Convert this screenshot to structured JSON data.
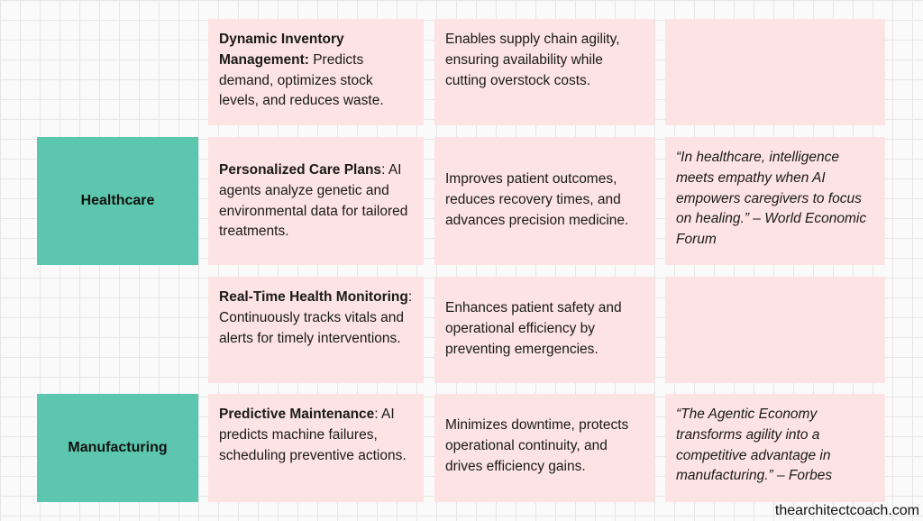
{
  "sectors": {
    "healthcare": "Healthcare",
    "manufacturing": "Manufacturing"
  },
  "rows": [
    {
      "use_case_title": "Dynamic Inventory Management:",
      "use_case_text": " Predicts demand, optimizes stock levels, and reduces waste.",
      "impact": "Enables supply chain agility, ensuring availability while cutting overstock costs.",
      "quote": ""
    },
    {
      "use_case_title": "Personalized Care Plans",
      "use_case_text": ": AI agents analyze genetic and environmental data for tailored treatments.",
      "impact": "Improves patient outcomes, reduces recovery times, and advances precision medicine.",
      "quote": "“In healthcare, intelligence meets empathy when AI empowers caregivers to focus on healing.” – World Economic Forum"
    },
    {
      "use_case_title": "Real-Time Health Monitoring",
      "use_case_text": ": Continuously tracks vitals and alerts for timely interventions.",
      "impact": "Enhances patient safety and operational efficiency by preventing emergencies.",
      "quote": ""
    },
    {
      "use_case_title": "Predictive Maintenance",
      "use_case_text": ": AI predicts machine failures, scheduling preventive actions.",
      "impact": "Minimizes downtime, protects operational continuity, and drives efficiency gains.",
      "quote": "“The Agentic Economy transforms agility into a competitive advantage in manufacturing.” – Forbes"
    }
  ],
  "footer": "thearchitectcoach.com"
}
